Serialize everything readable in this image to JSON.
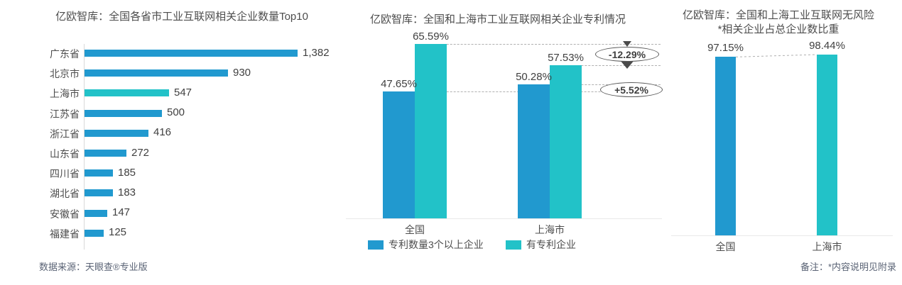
{
  "colors": {
    "blue": "#2199CF",
    "teal": "#22C2C8",
    "title_text": "#4d4d4d",
    "value_text": "#404040",
    "footer_text": "#5a6375",
    "axis_line": "#d9d9d9",
    "dashed_line": "#b0b0b0",
    "annotation_ink": "#4a4a4a"
  },
  "footers": {
    "left": "数据来源：天眼查®专业版",
    "right": "备注：*内容说明见附录"
  },
  "chart_data": [
    {
      "type": "bar",
      "orientation": "horizontal",
      "title": "亿欧智库：全国各省市工业互联网相关企业数量Top10",
      "categories": [
        "广东省",
        "北京市",
        "上海市",
        "江苏省",
        "浙江省",
        "山东省",
        "四川省",
        "湖北省",
        "安徽省",
        "福建省"
      ],
      "values": [
        1382,
        930,
        547,
        500,
        416,
        272,
        185,
        183,
        147,
        125
      ],
      "value_labels": [
        "1,382",
        "930",
        "547",
        "500",
        "416",
        "272",
        "185",
        "183",
        "147",
        "125"
      ],
      "highlight_category": "上海市",
      "xlim": [
        0,
        1382
      ],
      "grid": false,
      "legend_position": "none"
    },
    {
      "type": "bar",
      "orientation": "vertical",
      "title": "亿欧智库：全国和上海市工业互联网相关企业专利情况",
      "categories": [
        "全国",
        "上海市"
      ],
      "series": [
        {
          "name": "专利数量3个以上企业",
          "color_key": "blue",
          "values": [
            47.65,
            50.28
          ],
          "value_labels": [
            "47.65%",
            "50.28%"
          ]
        },
        {
          "name": "有专利企业",
          "color_key": "teal",
          "values": [
            65.59,
            57.53
          ],
          "value_labels": [
            "65.59%",
            "57.53%"
          ]
        }
      ],
      "annotations": [
        {
          "text": "-12.29%"
        },
        {
          "text": "+5.52%"
        }
      ],
      "ylim": [
        0,
        70
      ],
      "grid": false,
      "legend_position": "bottom"
    },
    {
      "type": "bar",
      "orientation": "vertical",
      "title_line1": "亿欧智库：全国和上海工业互联网无风险",
      "title_line2": "*相关企业占总企业数比重",
      "categories": [
        "全国",
        "上海市"
      ],
      "values": [
        97.15,
        98.44
      ],
      "value_labels": [
        "97.15%",
        "98.44%"
      ],
      "series_colors": [
        "blue",
        "teal"
      ],
      "ylim": [
        0,
        100
      ],
      "grid": false,
      "legend_position": "none"
    }
  ]
}
